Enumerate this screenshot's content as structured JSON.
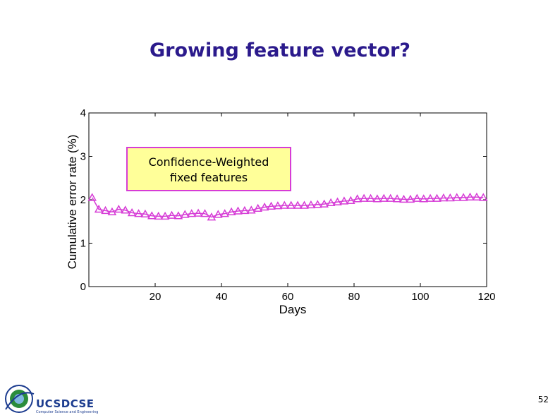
{
  "slide": {
    "title": "Growing feature vector?",
    "page_number": "52",
    "logo_text": "UCSDCSE",
    "logo_subtext": "Computer Science and Engineering"
  },
  "colors": {
    "title": "#2b1a8c",
    "series": "#d63cd6",
    "annotation_bg": "#ffff99",
    "annotation_border": "#d63cd6",
    "logo": "#1c3c8f"
  },
  "chart_data": {
    "type": "line",
    "title": "",
    "xlabel": "Days",
    "ylabel": "Cumulative error rate (%)",
    "xlim": [
      0,
      120
    ],
    "ylim": [
      0,
      4
    ],
    "xticks": [
      20,
      40,
      60,
      80,
      100,
      120
    ],
    "yticks": [
      0,
      1,
      2,
      3,
      4
    ],
    "grid": false,
    "annotation": "Confidence-Weighted\nfixed features",
    "series": [
      {
        "marker": "triangle",
        "x": [
          1,
          3,
          5,
          7,
          9,
          11,
          13,
          15,
          17,
          19,
          21,
          23,
          25,
          27,
          29,
          31,
          33,
          35,
          37,
          39,
          41,
          43,
          45,
          47,
          49,
          51,
          53,
          55,
          57,
          59,
          61,
          63,
          65,
          67,
          69,
          71,
          73,
          75,
          77,
          79,
          81,
          83,
          85,
          87,
          89,
          91,
          93,
          95,
          97,
          99,
          101,
          103,
          105,
          107,
          109,
          111,
          113,
          115,
          117,
          119
        ],
        "y": [
          2.05,
          1.78,
          1.75,
          1.72,
          1.78,
          1.76,
          1.7,
          1.68,
          1.67,
          1.63,
          1.62,
          1.62,
          1.64,
          1.63,
          1.66,
          1.68,
          1.69,
          1.68,
          1.6,
          1.66,
          1.68,
          1.72,
          1.74,
          1.75,
          1.76,
          1.8,
          1.83,
          1.85,
          1.86,
          1.87,
          1.87,
          1.87,
          1.87,
          1.88,
          1.89,
          1.9,
          1.93,
          1.95,
          1.97,
          1.98,
          2.02,
          2.03,
          2.03,
          2.02,
          2.03,
          2.03,
          2.02,
          2.01,
          2.01,
          2.03,
          2.02,
          2.03,
          2.03,
          2.04,
          2.04,
          2.05,
          2.05,
          2.06,
          2.06,
          2.05
        ]
      }
    ]
  }
}
